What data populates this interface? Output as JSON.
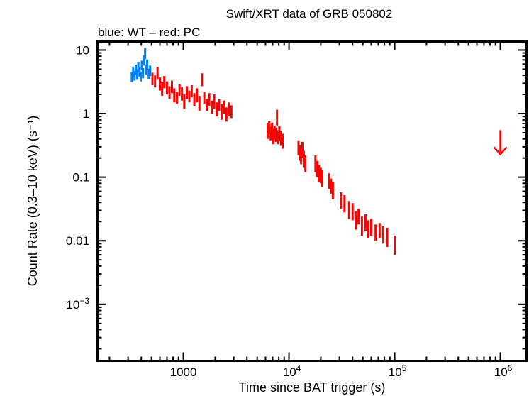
{
  "chart_data": {
    "type": "scatter",
    "title": "Swift/XRT data of GRB 050802",
    "subtitle": "blue: WT – red: PC",
    "xlabel": "Time since BAT trigger (s)",
    "ylabel": "Count Rate (0.3–10 keV) (s⁻¹)",
    "xscale": "log",
    "yscale": "log",
    "xlim": [
      154,
      1770000
    ],
    "ylim": [
      0.000129,
      13.6
    ],
    "grid": false,
    "x_ticks": [
      {
        "value": 1000,
        "label": "1000"
      },
      {
        "value": 10000,
        "label": "10",
        "exp": "4"
      },
      {
        "value": 100000,
        "label": "10",
        "exp": "5"
      },
      {
        "value": 1000000,
        "label": "10",
        "exp": "6"
      }
    ],
    "y_ticks": [
      {
        "value": 10,
        "label": "10"
      },
      {
        "value": 1,
        "label": "1"
      },
      {
        "value": 0.1,
        "label": "0.1"
      },
      {
        "value": 0.01,
        "label": "0.01"
      },
      {
        "value": 0.001,
        "label": "10",
        "exp": "−3"
      }
    ],
    "series": [
      {
        "name": "WT",
        "color": "#0080ff",
        "points": [
          [
            325,
            3.8,
            0.7
          ],
          [
            335,
            4.5,
            0.8
          ],
          [
            345,
            4.0,
            0.7
          ],
          [
            355,
            5.0,
            0.9
          ],
          [
            365,
            4.2,
            0.8
          ],
          [
            375,
            5.5,
            1.0
          ],
          [
            385,
            4.6,
            0.8
          ],
          [
            395,
            3.9,
            0.7
          ],
          [
            405,
            5.8,
            1.0
          ],
          [
            415,
            4.4,
            0.8
          ],
          [
            425,
            7.0,
            1.3
          ],
          [
            435,
            9.0,
            1.8
          ],
          [
            445,
            5.0,
            0.9
          ],
          [
            455,
            6.0,
            1.1
          ],
          [
            470,
            4.3,
            0.8
          ],
          [
            485,
            4.8,
            0.9
          ]
        ]
      },
      {
        "name": "PC",
        "color": "#ff0000",
        "points": [
          [
            510,
            3.6,
            0.8
          ],
          [
            540,
            3.3,
            0.7
          ],
          [
            570,
            4.4,
            1.0
          ],
          [
            600,
            3.0,
            0.7
          ],
          [
            630,
            2.5,
            0.6
          ],
          [
            660,
            3.2,
            0.7
          ],
          [
            700,
            2.6,
            0.6
          ],
          [
            740,
            2.2,
            0.5
          ],
          [
            780,
            2.7,
            0.6
          ],
          [
            820,
            2.0,
            0.5
          ],
          [
            870,
            1.8,
            0.4
          ],
          [
            920,
            2.4,
            0.5
          ],
          [
            970,
            2.1,
            0.5
          ],
          [
            1020,
            1.6,
            0.4
          ],
          [
            1080,
            2.2,
            0.5
          ],
          [
            1140,
            1.9,
            0.4
          ],
          [
            1200,
            2.3,
            0.5
          ],
          [
            1270,
            1.7,
            0.4
          ],
          [
            1340,
            2.0,
            0.5
          ],
          [
            1420,
            1.5,
            0.4
          ],
          [
            1500,
            3.5,
            0.8
          ],
          [
            1580,
            1.8,
            0.4
          ],
          [
            1670,
            1.4,
            0.3
          ],
          [
            1760,
            1.7,
            0.4
          ],
          [
            1860,
            1.3,
            0.3
          ],
          [
            1960,
            1.6,
            0.4
          ],
          [
            2070,
            1.2,
            0.3
          ],
          [
            2180,
            1.4,
            0.3
          ],
          [
            2300,
            1.1,
            0.3
          ],
          [
            2420,
            1.3,
            0.3
          ],
          [
            2560,
            1.0,
            0.25
          ],
          [
            2700,
            1.2,
            0.3
          ],
          [
            2850,
            1.1,
            0.25
          ],
          [
            6300,
            0.55,
            0.15
          ],
          [
            6500,
            0.62,
            0.15
          ],
          [
            6700,
            0.5,
            0.12
          ],
          [
            6900,
            0.58,
            0.14
          ],
          [
            7100,
            0.45,
            0.12
          ],
          [
            7300,
            0.52,
            0.13
          ],
          [
            7500,
            0.48,
            0.12
          ],
          [
            7700,
            0.9,
            0.25
          ],
          [
            7900,
            0.44,
            0.11
          ],
          [
            8100,
            0.5,
            0.13
          ],
          [
            8400,
            0.42,
            0.11
          ],
          [
            8700,
            0.38,
            0.1
          ],
          [
            12300,
            0.3,
            0.08
          ],
          [
            12700,
            0.25,
            0.07
          ],
          [
            13000,
            0.22,
            0.06
          ],
          [
            13400,
            0.28,
            0.08
          ],
          [
            13800,
            0.2,
            0.06
          ],
          [
            14300,
            0.17,
            0.05
          ],
          [
            17800,
            0.17,
            0.05
          ],
          [
            18500,
            0.14,
            0.04
          ],
          [
            19200,
            0.12,
            0.035
          ],
          [
            20000,
            0.11,
            0.03
          ],
          [
            20600,
            0.1,
            0.03
          ],
          [
            24000,
            0.09,
            0.025
          ],
          [
            25000,
            0.075,
            0.02
          ],
          [
            26000,
            0.065,
            0.02
          ],
          [
            31000,
            0.045,
            0.013
          ],
          [
            33500,
            0.04,
            0.012
          ],
          [
            37000,
            0.032,
            0.01
          ],
          [
            40000,
            0.03,
            0.009
          ],
          [
            43000,
            0.022,
            0.007
          ],
          [
            45500,
            0.025,
            0.007
          ],
          [
            49000,
            0.018,
            0.006
          ],
          [
            53000,
            0.02,
            0.006
          ],
          [
            56000,
            0.016,
            0.005
          ],
          [
            60000,
            0.017,
            0.005
          ],
          [
            66000,
            0.014,
            0.004
          ],
          [
            72000,
            0.015,
            0.004
          ],
          [
            78000,
            0.013,
            0.004
          ],
          [
            85000,
            0.012,
            0.004
          ],
          [
            100000,
            0.009,
            0.003
          ]
        ],
        "upper_limits": [
          [
            1000000,
            0.55
          ]
        ]
      }
    ]
  }
}
